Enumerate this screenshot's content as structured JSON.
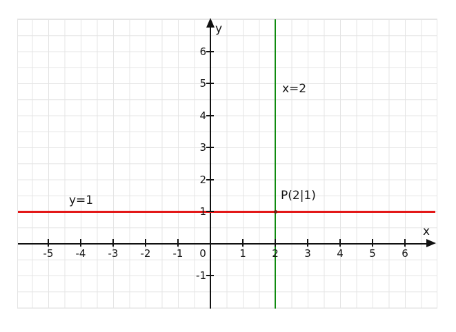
{
  "figure": {
    "background": "#ffffff",
    "axis_color": "#111111",
    "grid_color": "#e4e4e4",
    "text_color": "#161616"
  },
  "chart_data": {
    "type": "line",
    "title": "",
    "x_axis": {
      "label": "x",
      "ticks": [
        -5,
        -4,
        -3,
        -2,
        -1,
        1,
        2,
        3,
        4,
        5,
        6
      ],
      "origin_label": "0",
      "range": [
        -5.9,
        7.0
      ]
    },
    "y_axis": {
      "label": "y",
      "ticks": [
        -1,
        1,
        2,
        3,
        4,
        5,
        6
      ],
      "range": [
        -2.0,
        7.0
      ]
    },
    "grid": {
      "on": true,
      "minor_spacing": 0.5,
      "major_spacing": 1
    },
    "legend": "none",
    "series": [
      {
        "name": "horizontal-line",
        "equation": "y=1",
        "label": "y=1",
        "y": 1,
        "color": "#e31717"
      },
      {
        "name": "vertical-line",
        "equation": "x=2",
        "label": "x=2",
        "x": 2,
        "color": "#0f8b0f"
      }
    ],
    "points": [
      {
        "label": "P(2|1)",
        "x": 2,
        "y": 1,
        "marker_color": "#6e2012"
      }
    ]
  }
}
